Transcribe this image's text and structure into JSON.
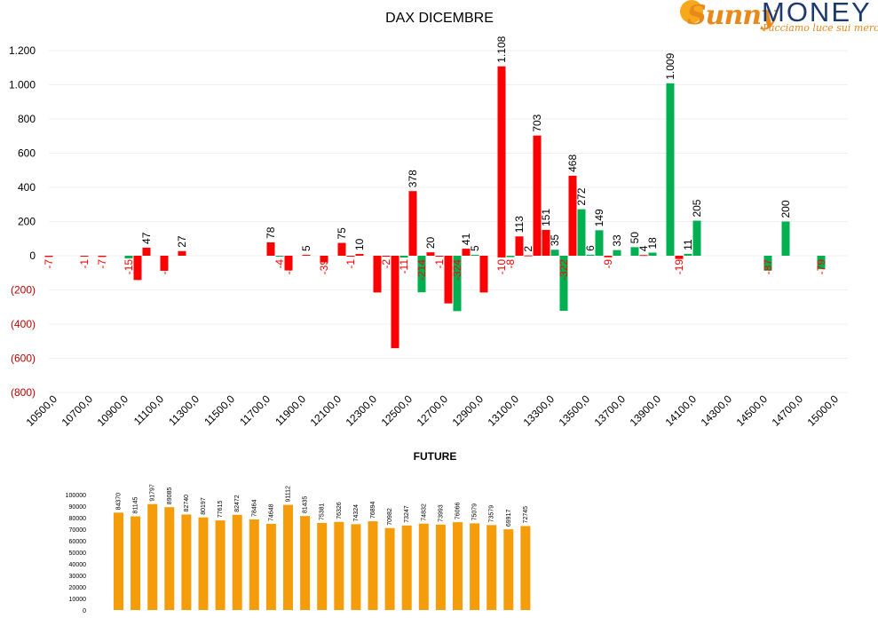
{
  "logo": {
    "brand_part1": "Sunny",
    "brand_part2": "MONEY",
    "tagline": "Facciamo luce sui mercati"
  },
  "colors": {
    "positive": "#00b050",
    "negative": "#ff0000",
    "future_bar": "#f59c0a",
    "axis_negative_label": "#c00000",
    "text": "#000000"
  },
  "chart_data": [
    {
      "type": "bar",
      "title": "DAX DICEMBRE",
      "ylim": [
        -800,
        1200
      ],
      "yticks": [
        {
          "value": 1200,
          "label": "1.200"
        },
        {
          "value": 1000,
          "label": "1.000"
        },
        {
          "value": 800,
          "label": "800"
        },
        {
          "value": 600,
          "label": "600"
        },
        {
          "value": 400,
          "label": "400"
        },
        {
          "value": 200,
          "label": "200"
        },
        {
          "value": 0,
          "label": "0"
        },
        {
          "value": -200,
          "label": "(200)"
        },
        {
          "value": -400,
          "label": "(400)"
        },
        {
          "value": -600,
          "label": "(600)"
        },
        {
          "value": -800,
          "label": "(800)"
        }
      ],
      "xlim": [
        10500,
        15000
      ],
      "xtick_labels": [
        "10500,0",
        "10700,0",
        "10900,0",
        "11100,0",
        "11300,0",
        "11500,0",
        "11700,0",
        "11900,0",
        "12100,0",
        "12300,0",
        "12500,0",
        "12700,0",
        "12900,0",
        "13100,0",
        "13300,0",
        "13500,0",
        "13700,0",
        "13900,0",
        "14100,0",
        "14300,0",
        "14500,0",
        "14700,0",
        "15000,0"
      ],
      "grid": true,
      "series": [
        {
          "color": "red",
          "points": [
            {
              "x": 10500,
              "value": -7,
              "label": "-7"
            },
            {
              "x": 10700,
              "value": -1,
              "label": "-1"
            },
            {
              "x": 10800,
              "value": -7,
              "label": "-7"
            },
            {
              "x": 11000,
              "value": -142,
              "label": "-142"
            },
            {
              "x": 11050,
              "value": 47,
              "label": "47"
            },
            {
              "x": 11150,
              "value": -88,
              "label": "-88"
            },
            {
              "x": 11250,
              "value": 27,
              "label": "27"
            },
            {
              "x": 11750,
              "value": 78,
              "label": "78"
            },
            {
              "x": 11850,
              "value": -86,
              "label": "-86"
            },
            {
              "x": 11950,
              "value": 5,
              "label": "5"
            },
            {
              "x": 12050,
              "value": -39,
              "label": "-39"
            },
            {
              "x": 12150,
              "value": 75,
              "label": "75"
            },
            {
              "x": 12200,
              "value": -1,
              "label": "-1"
            },
            {
              "x": 12250,
              "value": 10,
              "label": "10"
            },
            {
              "x": 12350,
              "value": -215,
              "label": "-215"
            },
            {
              "x": 12400,
              "value": -2,
              "label": "-2"
            },
            {
              "x": 12450,
              "value": -541,
              "label": "-541"
            },
            {
              "x": 12550,
              "value": 378,
              "label": "378"
            },
            {
              "x": 12650,
              "value": 20,
              "label": "20"
            },
            {
              "x": 12700,
              "value": -1,
              "label": "-1"
            },
            {
              "x": 12750,
              "value": -279,
              "label": "-279"
            },
            {
              "x": 12850,
              "value": 41,
              "label": "41"
            },
            {
              "x": 12950,
              "value": -215,
              "label": "-215"
            },
            {
              "x": 13050,
              "value": -10,
              "label": "-10"
            },
            {
              "x": 13050,
              "value": 1108,
              "label": "1.108"
            },
            {
              "x": 13150,
              "value": 113,
              "label": "113"
            },
            {
              "x": 13200,
              "value": 2,
              "label": "2"
            },
            {
              "x": 13250,
              "value": 703,
              "label": "703"
            },
            {
              "x": 13300,
              "value": 151,
              "label": "151"
            },
            {
              "x": 13450,
              "value": 468,
              "label": "468"
            },
            {
              "x": 13650,
              "value": -9,
              "label": "-9"
            },
            {
              "x": 13850,
              "value": 4,
              "label": "4"
            },
            {
              "x": 14050,
              "value": -19,
              "label": "-19"
            }
          ]
        },
        {
          "color": "green",
          "points": [
            {
              "x": 10950,
              "value": -15,
              "label": "-15"
            },
            {
              "x": 11800,
              "value": -4,
              "label": "-4"
            },
            {
              "x": 12500,
              "value": -11,
              "label": "-11"
            },
            {
              "x": 12600,
              "value": -214,
              "label": "-214"
            },
            {
              "x": 12800,
              "value": -324,
              "label": "-324"
            },
            {
              "x": 12900,
              "value": 5,
              "label": "5"
            },
            {
              "x": 13100,
              "value": -8,
              "label": "-8"
            },
            {
              "x": 13350,
              "value": 35,
              "label": "35"
            },
            {
              "x": 13400,
              "value": -322,
              "label": "-322"
            },
            {
              "x": 13500,
              "value": 272,
              "label": "272"
            },
            {
              "x": 13550,
              "value": 6,
              "label": "6"
            },
            {
              "x": 13600,
              "value": 149,
              "label": "149"
            },
            {
              "x": 13700,
              "value": 33,
              "label": "33"
            },
            {
              "x": 13800,
              "value": 50,
              "label": "50"
            },
            {
              "x": 13900,
              "value": 18,
              "label": "18"
            },
            {
              "x": 14000,
              "value": 1009,
              "label": "1.009"
            },
            {
              "x": 14100,
              "value": 11,
              "label": "11"
            },
            {
              "x": 14150,
              "value": 205,
              "label": "205"
            },
            {
              "x": 14550,
              "value": -87,
              "label": "-87"
            },
            {
              "x": 14650,
              "value": 200,
              "label": "200"
            },
            {
              "x": 14850,
              "value": -79,
              "label": "-79"
            }
          ]
        }
      ]
    },
    {
      "type": "bar",
      "title": "FUTURE",
      "ylim": [
        0,
        100000
      ],
      "yticks": [
        0,
        10000,
        20000,
        30000,
        40000,
        50000,
        60000,
        70000,
        80000,
        90000,
        100000
      ],
      "values": [
        84370,
        81145,
        91797,
        89085,
        82740,
        80197,
        77615,
        82472,
        78464,
        74648,
        91112,
        81435,
        75381,
        76326,
        74324,
        76894,
        70982,
        73247,
        74832,
        73993,
        76066,
        75079,
        73579,
        69917,
        72745
      ]
    }
  ]
}
